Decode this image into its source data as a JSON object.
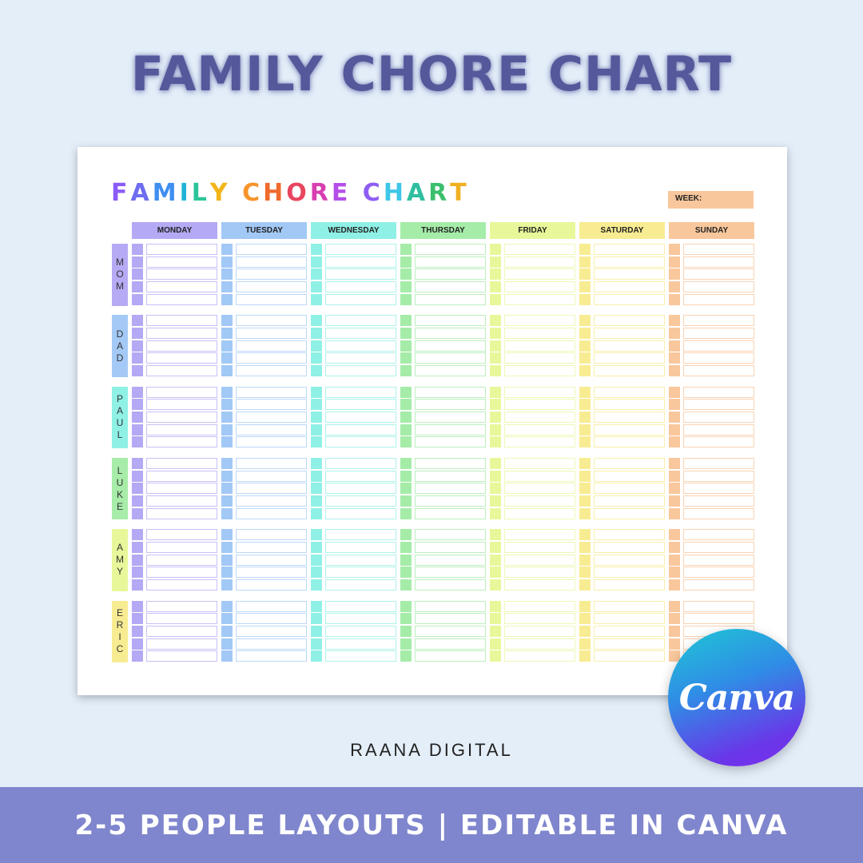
{
  "header": {
    "title": "FAMILY CHORE CHART"
  },
  "sheet": {
    "title": "FAMILY CHORE CHART",
    "title_colors": [
      "#8a5cf6",
      "#6f6cf2",
      "#3f8ef0",
      "#20b3d6",
      "#2bc49a",
      "#f2b51a",
      "#f7942a",
      "#f06a2e",
      "#e8455f",
      "#d83fb0",
      "#b44ee8",
      "#8e5df4",
      "#3ec6e8",
      "#2fbfa0",
      "#3bbf6d",
      "#f0b021",
      "#f48a2c",
      "#ef5a3a"
    ],
    "week_label": "WEEK:",
    "days": [
      {
        "label": "MONDAY",
        "color": "#b3a9f4",
        "light": "#c9c0f6"
      },
      {
        "label": "TUESDAY",
        "color": "#a2c8f6",
        "light": "#bcd8f7"
      },
      {
        "label": "WEDNESDAY",
        "color": "#8ff0e6",
        "light": "#aef2ea"
      },
      {
        "label": "THURSDAY",
        "color": "#a5eca8",
        "light": "#bcefbe"
      },
      {
        "label": "FRIDAY",
        "color": "#e8f79a",
        "light": "#eef8b6"
      },
      {
        "label": "SATURDAY",
        "color": "#f8ec92",
        "light": "#f9efac"
      },
      {
        "label": "SUNDAY",
        "color": "#f9c79c",
        "light": "#fad3b2"
      }
    ],
    "people": [
      {
        "name": "MOM",
        "color": "#b6aaf5"
      },
      {
        "name": "DAD",
        "color": "#a4c9f6"
      },
      {
        "name": "PAUL",
        "color": "#8ff0e6"
      },
      {
        "name": "LUKE",
        "color": "#a7eca9"
      },
      {
        "name": "AMY",
        "color": "#e8f79a"
      },
      {
        "name": "ERIC",
        "color": "#f8ec92"
      }
    ],
    "rows_per_person": 5
  },
  "byline": "RAANA DIGITAL",
  "badge": {
    "label": "Canva"
  },
  "footer": {
    "text": "2-5 PEOPLE LAYOUTS | EDITABLE IN CANVA"
  }
}
